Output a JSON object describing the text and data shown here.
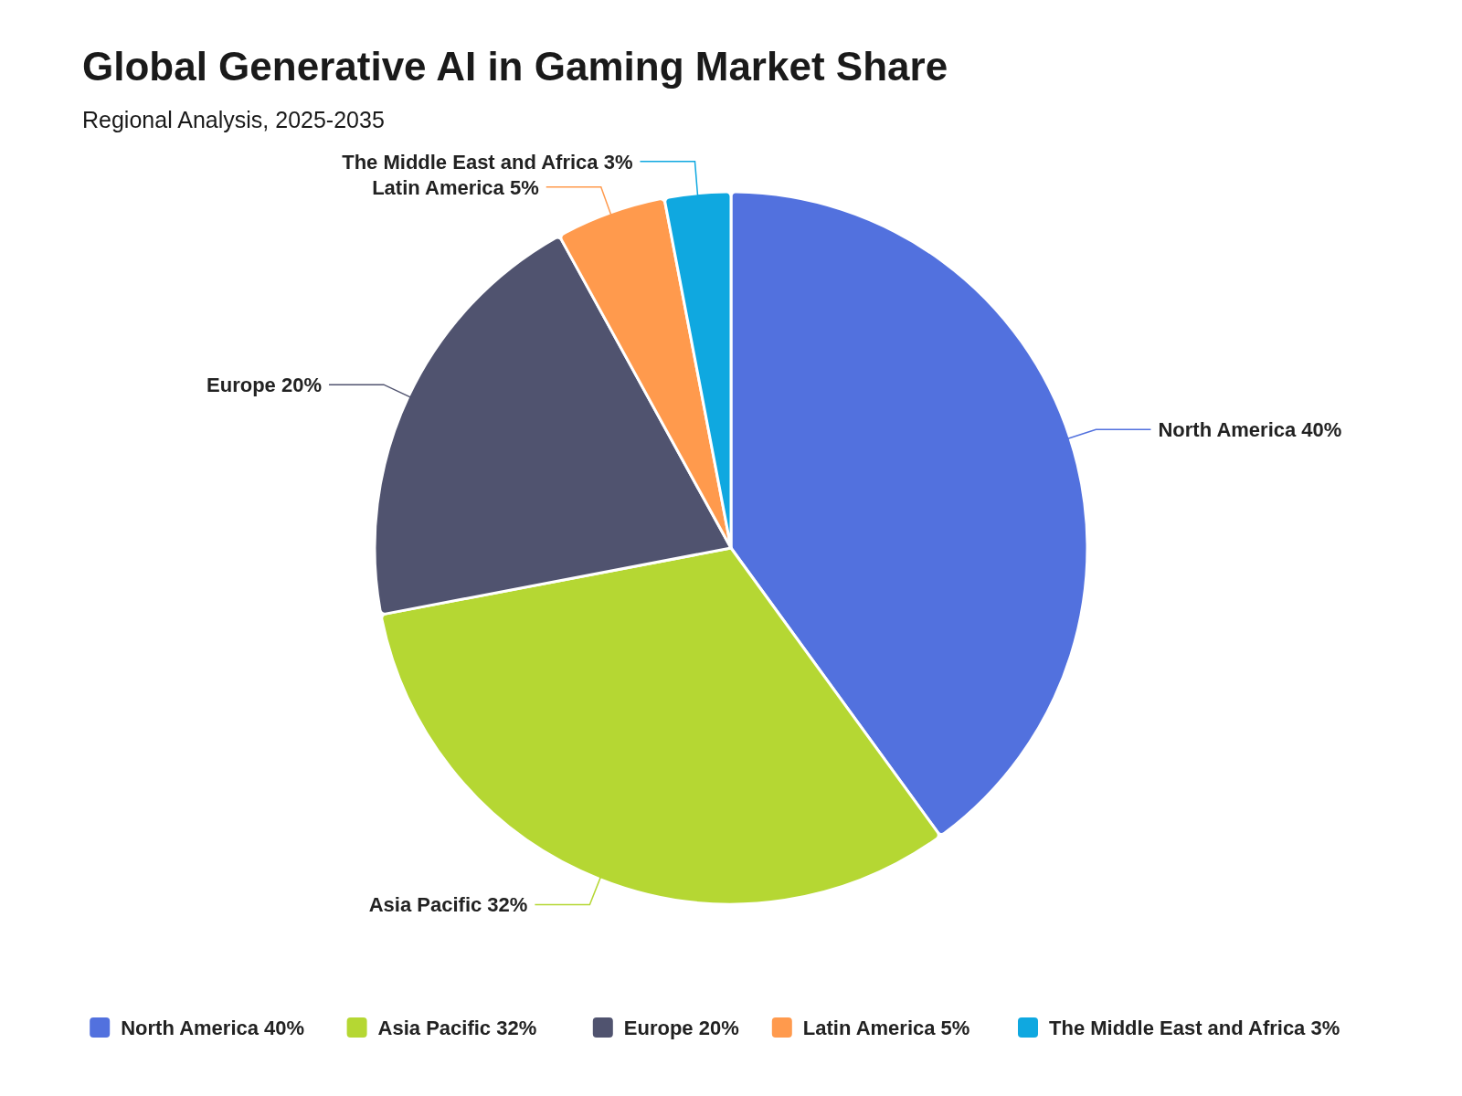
{
  "chart_data": {
    "type": "pie",
    "title": "Global Generative AI in Gaming Market Share",
    "subtitle": "Regional Analysis, 2025-2035",
    "categories": [
      "North America",
      "Asia Pacific",
      "Europe",
      "Latin America",
      "The Middle East and Africa"
    ],
    "values": [
      40,
      32,
      20,
      5,
      3
    ],
    "value_labels": [
      "40%",
      "32%",
      "20%",
      "5%",
      "3%"
    ],
    "colors": [
      "#5271de",
      "#b5d733",
      "#50536f",
      "#ff9a4d",
      "#0fa8e0"
    ],
    "legend": "bottom"
  }
}
